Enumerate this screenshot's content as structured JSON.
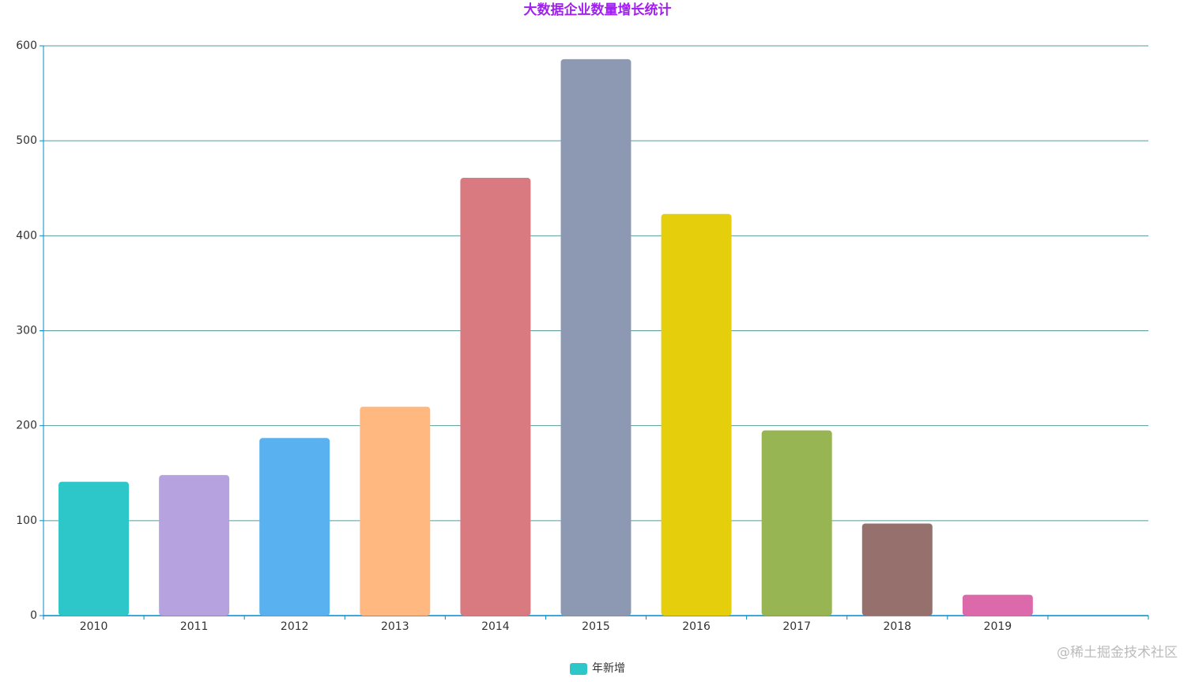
{
  "chart_data": {
    "type": "bar",
    "title": "大数据企业数量增长统计",
    "categories": [
      "2010",
      "2011",
      "2012",
      "2013",
      "2014",
      "2015",
      "2016",
      "2017",
      "2018",
      "2019",
      null
    ],
    "series": [
      {
        "name": "年新增",
        "color": "#2ec7c9",
        "values": [
          141,
          148,
          187,
          220,
          461,
          586,
          423,
          195,
          97,
          22,
          null
        ]
      }
    ],
    "bar_colors": [
      "#2ec7c9",
      "#b6a2de",
      "#5ab1ef",
      "#ffb980",
      "#d87a80",
      "#8d98b3",
      "#e5cf0d",
      "#97b552",
      "#95706d",
      "#dc69aa",
      null
    ],
    "ylim": [
      0,
      600
    ],
    "yticks": [
      0,
      100,
      200,
      300,
      400,
      500,
      600
    ],
    "grid": true,
    "legend": "bottom",
    "watermark": "@稀土掘金技术社区"
  }
}
